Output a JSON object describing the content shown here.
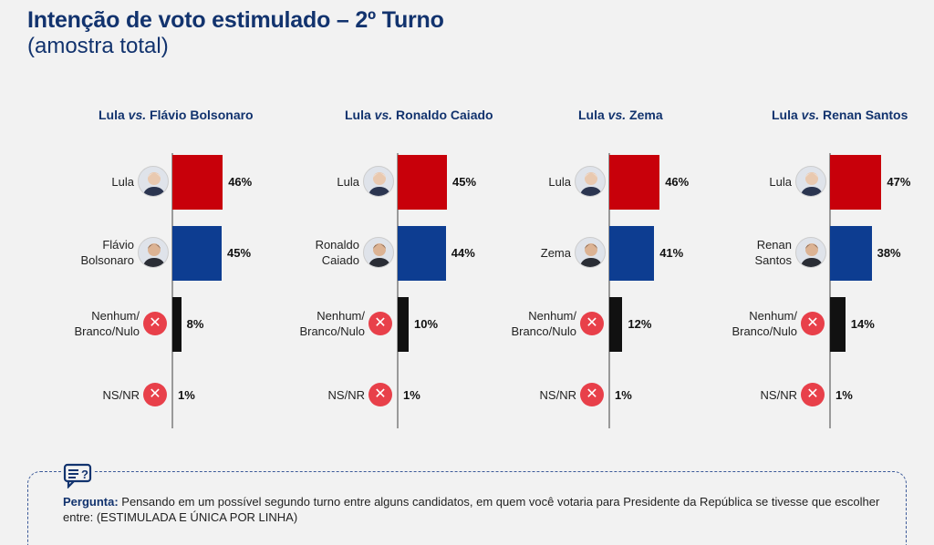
{
  "title": "Intenção de voto estimulado – 2º Turno",
  "subtitle": "(amostra total)",
  "colors": {
    "lula": "#c8000a",
    "opponent": "#0d3d91",
    "none": "#111111",
    "nsnr": "#9a9a9a",
    "x_icon": "#e8404a",
    "title": "#12336e"
  },
  "chart_data": [
    {
      "type": "bar",
      "title_parts": [
        "Lula ",
        "vs.",
        " Flávio Bolsonaro"
      ],
      "categories": [
        "Lula",
        "Flávio Bolsonaro",
        "Nenhum/ Branco/Nulo",
        "NS/NR"
      ],
      "label_lines": [
        [
          "Lula"
        ],
        [
          "Flávio",
          "Bolsonaro"
        ],
        [
          "Nenhum/",
          "Branco/Nulo"
        ],
        [
          "NS/NR"
        ]
      ],
      "values": [
        46,
        45,
        8,
        1
      ],
      "value_labels": [
        "46%",
        "45%",
        "8%",
        "1%"
      ]
    },
    {
      "type": "bar",
      "title_parts": [
        "Lula ",
        "vs.",
        " Ronaldo Caiado"
      ],
      "categories": [
        "Lula",
        "Ronaldo Caiado",
        "Nenhum/ Branco/Nulo",
        "NS/NR"
      ],
      "label_lines": [
        [
          "Lula"
        ],
        [
          "Ronaldo",
          "Caiado"
        ],
        [
          "Nenhum/",
          "Branco/Nulo"
        ],
        [
          "NS/NR"
        ]
      ],
      "values": [
        45,
        44,
        10,
        1
      ],
      "value_labels": [
        "45%",
        "44%",
        "10%",
        "1%"
      ]
    },
    {
      "type": "bar",
      "title_parts": [
        "Lula ",
        "vs.",
        " Zema"
      ],
      "categories": [
        "Lula",
        "Zema",
        "Nenhum/ Branco/Nulo",
        "NS/NR"
      ],
      "label_lines": [
        [
          "Lula"
        ],
        [
          "Zema"
        ],
        [
          "Nenhum/",
          "Branco/Nulo"
        ],
        [
          "NS/NR"
        ]
      ],
      "values": [
        46,
        41,
        12,
        1
      ],
      "value_labels": [
        "46%",
        "41%",
        "12%",
        "1%"
      ]
    },
    {
      "type": "bar",
      "title_parts": [
        "Lula ",
        "vs.",
        " Renan Santos"
      ],
      "categories": [
        "Lula",
        "Renan Santos",
        "Nenhum/ Branco/Nulo",
        "NS/NR"
      ],
      "label_lines": [
        [
          "Lula"
        ],
        [
          "Renan",
          "Santos"
        ],
        [
          "Nenhum/",
          "Branco/Nulo"
        ],
        [
          "NS/NR"
        ]
      ],
      "values": [
        47,
        38,
        14,
        1
      ],
      "value_labels": [
        "47%",
        "38%",
        "14%",
        "1%"
      ]
    }
  ],
  "question": {
    "label": "Pergunta:",
    "text": " Pensando em um possível segundo turno entre alguns candidatos, em quem você votaria para Presidente da República se tivesse que escolher entre: (ESTIMULADA E ÚNICA POR LINHA)"
  }
}
